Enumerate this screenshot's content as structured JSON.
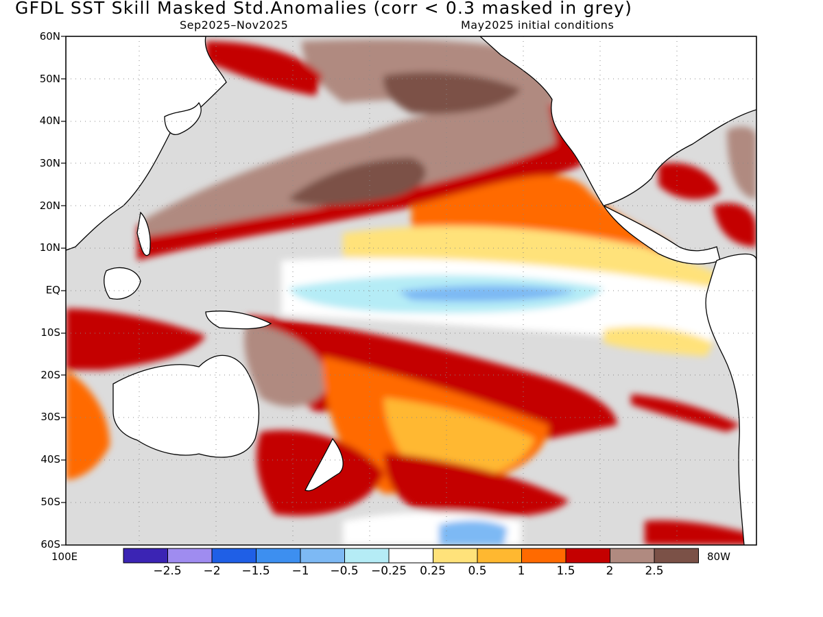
{
  "header": {
    "title": "GFDL   SST Skill Masked Std.Anomalies (corr < 0.3 masked in grey)",
    "period": "Sep2025–Nov2025",
    "init": "May2025 initial conditions"
  },
  "axes": {
    "lat_labels": [
      "60N",
      "50N",
      "40N",
      "30N",
      "20N",
      "10N",
      "EQ",
      "10S",
      "20S",
      "30S",
      "40S",
      "50S",
      "60S"
    ],
    "lon_left": "100E",
    "lon_right": "80W"
  },
  "colorbar": {
    "colors": [
      "#3b24b4",
      "#9f8cf0",
      "#1f5fe6",
      "#3d8ff0",
      "#7db9f4",
      "#b5ecf6",
      "#ffffff",
      "#ffe27a",
      "#ffb830",
      "#ff6a00",
      "#c40000",
      "#b08a80",
      "#7b5147"
    ],
    "labels": [
      "−2.5",
      "−2",
      "−1.5",
      "−1",
      "−0.5",
      "−0.25",
      "0.25",
      "0.5",
      "1",
      "1.5",
      "2",
      "2.5"
    ]
  },
  "palette": {
    "mask_grey": "#dcdcdc",
    "land": "#ffffff",
    "coast": "#000000"
  }
}
